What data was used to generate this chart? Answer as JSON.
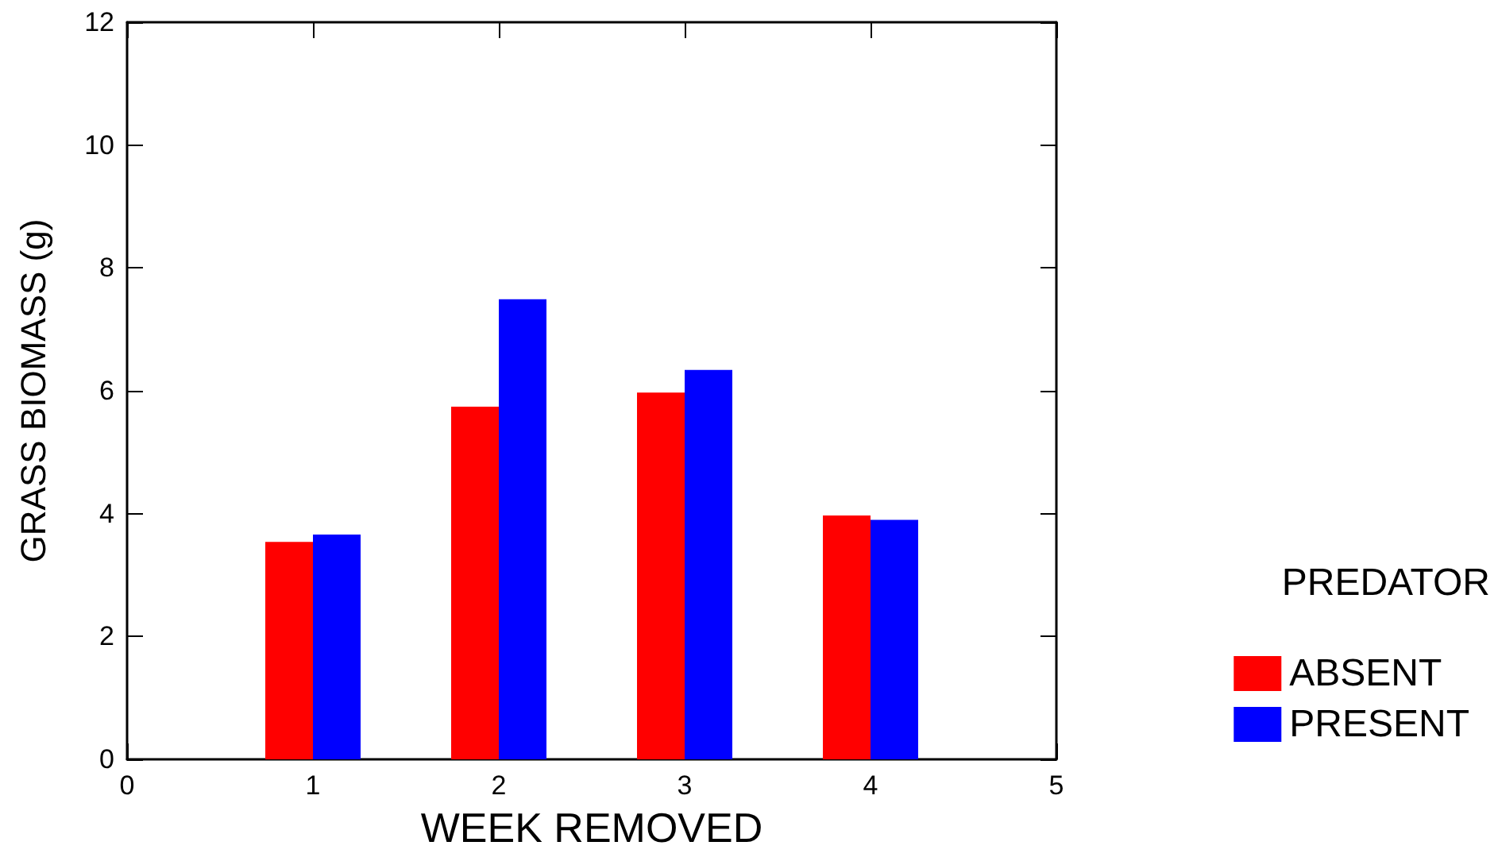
{
  "chart_data": {
    "type": "bar",
    "xlabel": "WEEK REMOVED",
    "ylabel": "GRASS BIOMASS (g)",
    "legend_title": "PREDATOR",
    "x": [
      1,
      2,
      3,
      4
    ],
    "series": [
      {
        "name": "ABSENT",
        "color": "#ff0000",
        "values": [
          3.54,
          5.74,
          5.97,
          3.97
        ]
      },
      {
        "name": "PRESENT",
        "color": "#0000ff",
        "values": [
          3.66,
          7.49,
          6.34,
          3.9
        ]
      }
    ],
    "xlim": [
      0,
      5
    ],
    "xticks": [
      0,
      1,
      2,
      3,
      4,
      5
    ],
    "ylim": [
      0,
      12
    ],
    "yticks": [
      0,
      2,
      4,
      6,
      8,
      10,
      12
    ],
    "grid": false,
    "legend": "right"
  }
}
